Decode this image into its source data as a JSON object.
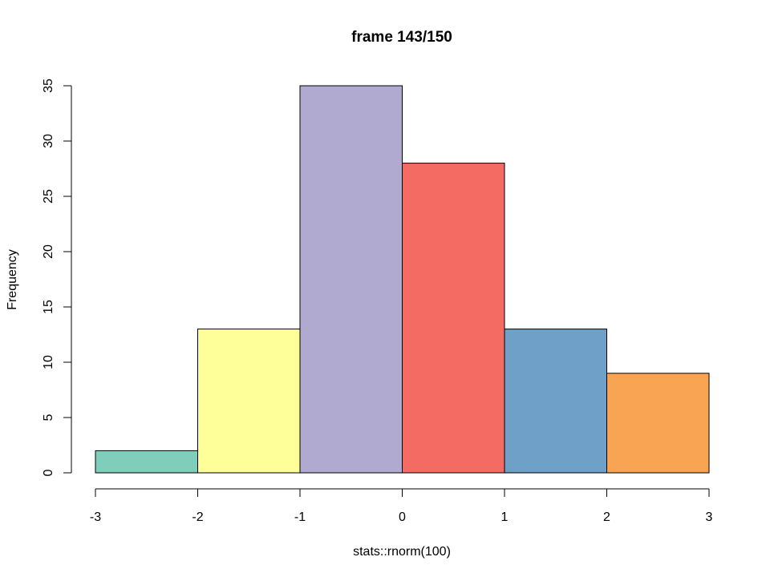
{
  "chart_data": {
    "type": "bar",
    "subtype": "histogram",
    "title": "frame 143/150",
    "xlabel": "stats::rnorm(100)",
    "ylabel": "Frequency",
    "bins": [
      {
        "from": -3,
        "to": -2,
        "count": 2,
        "color": "#7fcdbb"
      },
      {
        "from": -2,
        "to": -1,
        "count": 13,
        "color": "#ffff99"
      },
      {
        "from": -1,
        "to": 0,
        "count": 35,
        "color": "#b0aad0"
      },
      {
        "from": 0,
        "to": 1,
        "count": 28,
        "color": "#f46b63"
      },
      {
        "from": 1,
        "to": 2,
        "count": 13,
        "color": "#6fa0c8"
      },
      {
        "from": 2,
        "to": 3,
        "count": 9,
        "color": "#f9a452"
      }
    ],
    "xlim": [
      -3,
      3
    ],
    "ylim": [
      0,
      35
    ],
    "xticks": [
      "-3",
      "-2",
      "-1",
      "0",
      "1",
      "2",
      "3"
    ],
    "yticks": [
      "0",
      "5",
      "10",
      "15",
      "20",
      "25",
      "30",
      "35"
    ],
    "grid": false,
    "legend": "none"
  }
}
